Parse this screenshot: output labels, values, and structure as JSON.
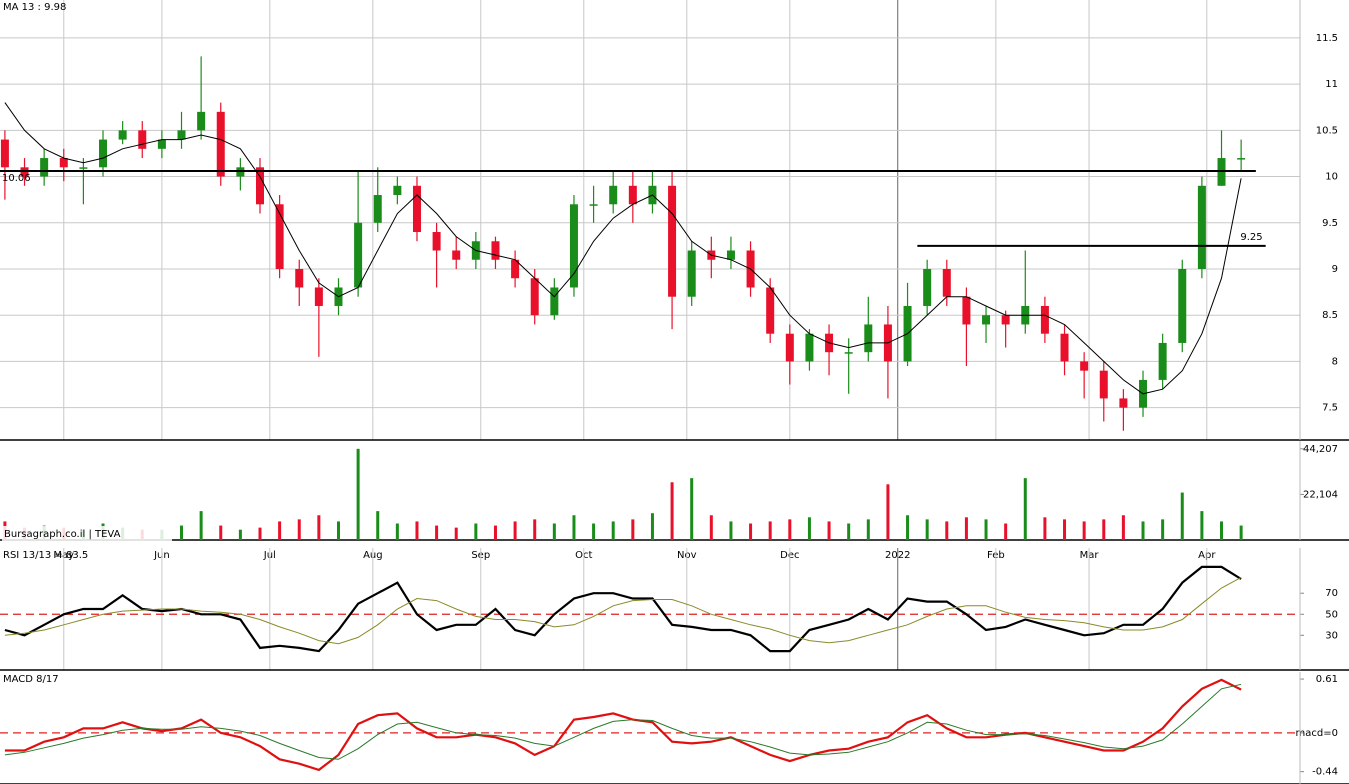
{
  "chart_data": [
    {
      "type": "candlestick",
      "title": "MA 13 : 9.98",
      "x": [
        1,
        5,
        9,
        13,
        17,
        21,
        25,
        29,
        33,
        37,
        41,
        45,
        49,
        53,
        57,
        61,
        65,
        69,
        73,
        77,
        81,
        85,
        89,
        93,
        97,
        101,
        105,
        109,
        113,
        117,
        121,
        125,
        129,
        133,
        137,
        141,
        145,
        149,
        153,
        157,
        161,
        165,
        169,
        173,
        177,
        181,
        185,
        189,
        193,
        197,
        201,
        205,
        209,
        213,
        217,
        221,
        225,
        229,
        233,
        237,
        241,
        245,
        249,
        253
      ],
      "open": [
        10.4,
        10.1,
        10.0,
        10.2,
        10.1,
        10.1,
        10.4,
        10.5,
        10.3,
        10.4,
        10.5,
        10.7,
        10.0,
        10.1,
        9.7,
        9.0,
        8.8,
        8.6,
        8.8,
        9.5,
        9.8,
        9.9,
        9.4,
        9.2,
        9.1,
        9.3,
        9.1,
        8.9,
        8.5,
        8.8,
        9.7,
        9.7,
        9.9,
        9.7,
        9.9,
        8.7,
        9.2,
        9.1,
        9.2,
        8.8,
        8.3,
        8.0,
        8.3,
        8.1,
        8.1,
        8.4,
        8.0,
        8.6,
        9.0,
        8.7,
        8.4,
        8.5,
        8.4,
        8.6,
        8.3,
        8.0,
        7.9,
        7.6,
        7.5,
        7.8,
        8.2,
        9.0,
        9.9,
        10.2
      ],
      "high": [
        10.5,
        10.2,
        10.3,
        10.3,
        10.2,
        10.5,
        10.6,
        10.6,
        10.5,
        10.7,
        11.3,
        10.8,
        10.2,
        10.2,
        9.8,
        9.1,
        8.9,
        8.9,
        10.05,
        10.1,
        10.0,
        10.0,
        9.5,
        9.35,
        9.4,
        9.35,
        9.2,
        9.0,
        8.9,
        9.8,
        9.9,
        10.05,
        10.05,
        10.05,
        10.05,
        9.3,
        9.35,
        9.35,
        9.3,
        8.9,
        8.4,
        8.35,
        8.4,
        8.25,
        8.7,
        8.6,
        8.85,
        9.1,
        9.1,
        8.8,
        8.6,
        8.55,
        9.2,
        8.7,
        8.4,
        8.1,
        8.0,
        7.7,
        7.9,
        8.3,
        9.1,
        10.0,
        10.5,
        10.4
      ],
      "low": [
        9.75,
        9.9,
        9.9,
        9.95,
        9.7,
        10.0,
        10.35,
        10.2,
        10.2,
        10.3,
        10.4,
        9.9,
        9.85,
        9.6,
        8.9,
        8.6,
        8.05,
        8.5,
        8.7,
        9.4,
        9.7,
        9.3,
        8.8,
        9.0,
        9.0,
        9.0,
        8.8,
        8.4,
        8.45,
        8.7,
        9.5,
        9.6,
        9.5,
        9.6,
        8.35,
        8.6,
        8.9,
        9.0,
        8.7,
        8.2,
        7.75,
        7.9,
        7.85,
        7.65,
        8.0,
        7.6,
        7.95,
        8.5,
        8.6,
        7.95,
        8.2,
        8.15,
        8.3,
        8.2,
        7.85,
        7.6,
        7.35,
        7.25,
        7.4,
        7.7,
        8.1,
        8.9,
        9.9,
        10.05
      ],
      "close": [
        10.1,
        10.0,
        10.2,
        10.1,
        10.1,
        10.4,
        10.5,
        10.3,
        10.4,
        10.5,
        10.7,
        10.0,
        10.1,
        9.7,
        9.0,
        8.8,
        8.6,
        8.8,
        9.5,
        9.8,
        9.9,
        9.4,
        9.2,
        9.1,
        9.3,
        9.1,
        8.9,
        8.5,
        8.8,
        9.7,
        9.7,
        9.9,
        9.7,
        9.9,
        8.7,
        9.2,
        9.1,
        9.2,
        8.8,
        8.3,
        8.0,
        8.3,
        8.1,
        8.1,
        8.4,
        8.0,
        8.6,
        9.0,
        8.7,
        8.4,
        8.5,
        8.4,
        8.6,
        8.3,
        8.0,
        7.9,
        7.6,
        7.5,
        7.8,
        8.2,
        9.0,
        9.9,
        10.2,
        10.2
      ],
      "up_color": "#1a8c1a",
      "down_color": "#e8102a",
      "series": [
        {
          "color": "#000000",
          "values": [
            10.8,
            10.5,
            10.3,
            10.2,
            10.15,
            10.2,
            10.3,
            10.35,
            10.4,
            10.4,
            10.45,
            10.4,
            10.3,
            10.0,
            9.6,
            9.2,
            8.85,
            8.7,
            8.8,
            9.2,
            9.6,
            9.8,
            9.6,
            9.35,
            9.2,
            9.15,
            9.1,
            8.9,
            8.7,
            8.95,
            9.3,
            9.55,
            9.7,
            9.8,
            9.6,
            9.3,
            9.15,
            9.1,
            9.0,
            8.8,
            8.5,
            8.3,
            8.2,
            8.15,
            8.2,
            8.2,
            8.3,
            8.5,
            8.7,
            8.7,
            8.6,
            8.5,
            8.5,
            8.5,
            8.4,
            8.2,
            8.0,
            7.8,
            7.65,
            7.7,
            7.9,
            8.3,
            8.9,
            9.98
          ]
        }
      ],
      "levels": [
        {
          "value": 10.06,
          "label": "10.06",
          "xlim": [
            0,
            256
          ]
        },
        {
          "value": 9.25,
          "label": "9.25",
          "xlim": [
            187,
            258
          ]
        }
      ],
      "xlim": [
        0,
        265
      ],
      "ylim": [
        7.15,
        11.91
      ],
      "xticks": [
        {
          "value": 13,
          "label": "May"
        },
        {
          "value": 33,
          "label": "Jun"
        },
        {
          "value": 55,
          "label": "Jul"
        },
        {
          "value": 76,
          "label": "Aug"
        },
        {
          "value": 98,
          "label": "Sep"
        },
        {
          "value": 119,
          "label": "Oct"
        },
        {
          "value": 140,
          "label": "Nov"
        },
        {
          "value": 161,
          "label": "Dec"
        },
        {
          "value": 183,
          "label": "2022"
        },
        {
          "value": 203,
          "label": "Feb"
        },
        {
          "value": 222,
          "label": "Mar"
        },
        {
          "value": 246,
          "label": "Apr"
        }
      ],
      "yticks": [
        7.5,
        8,
        8.5,
        9,
        9.5,
        10,
        10.5,
        11,
        11.5
      ],
      "grid": true
    },
    {
      "type": "bar",
      "title": "Bursagraph.co.il | TEVA",
      "x": [
        1,
        5,
        9,
        13,
        17,
        21,
        25,
        29,
        33,
        37,
        41,
        45,
        49,
        53,
        57,
        61,
        65,
        69,
        73,
        77,
        81,
        85,
        89,
        93,
        97,
        101,
        105,
        109,
        113,
        117,
        121,
        125,
        129,
        133,
        137,
        141,
        145,
        149,
        153,
        157,
        161,
        165,
        169,
        173,
        177,
        181,
        185,
        189,
        193,
        197,
        201,
        205,
        209,
        213,
        217,
        221,
        225,
        229,
        233,
        237,
        241,
        245,
        249,
        253
      ],
      "values": [
        9000,
        6000,
        7000,
        6000,
        5000,
        8000,
        6000,
        5000,
        5000,
        7000,
        14000,
        7000,
        5000,
        6000,
        9000,
        10000,
        12000,
        9000,
        44207,
        14000,
        8000,
        9000,
        7000,
        6000,
        8000,
        7000,
        9000,
        10000,
        8000,
        12000,
        8000,
        9000,
        10000,
        13000,
        28000,
        30000,
        12000,
        9000,
        8000,
        9000,
        10000,
        11000,
        9000,
        8000,
        10000,
        27000,
        12000,
        10000,
        9000,
        11000,
        10000,
        8000,
        30000,
        11000,
        10000,
        9000,
        10000,
        12000,
        9000,
        10000,
        23000,
        14000,
        9000,
        7000
      ],
      "xlim": [
        0,
        265
      ],
      "ylim": [
        0,
        48000
      ],
      "yticks": [
        {
          "value": 44207,
          "label": "44,207"
        },
        {
          "value": 22104,
          "label": "22,104"
        }
      ]
    },
    {
      "type": "line",
      "title": "RSI 13/13 = 83.5",
      "x": [
        1,
        5,
        9,
        13,
        17,
        21,
        25,
        29,
        33,
        37,
        41,
        45,
        49,
        53,
        57,
        61,
        65,
        69,
        73,
        77,
        81,
        85,
        89,
        93,
        97,
        101,
        105,
        109,
        113,
        117,
        121,
        125,
        129,
        133,
        137,
        141,
        145,
        149,
        153,
        157,
        161,
        165,
        169,
        173,
        177,
        181,
        185,
        189,
        193,
        197,
        201,
        205,
        209,
        213,
        217,
        221,
        225,
        229,
        233,
        237,
        241,
        245,
        249,
        253
      ],
      "series": [
        {
          "color": "#000000",
          "values": [
            35,
            30,
            40,
            50,
            55,
            55,
            68,
            55,
            53,
            55,
            50,
            50,
            45,
            18,
            20,
            18,
            15,
            35,
            60,
            70,
            80,
            50,
            35,
            40,
            40,
            55,
            35,
            30,
            50,
            65,
            70,
            70,
            65,
            65,
            40,
            38,
            35,
            35,
            30,
            15,
            15,
            35,
            40,
            45,
            55,
            45,
            65,
            62,
            62,
            50,
            35,
            38,
            45,
            40,
            35,
            30,
            32,
            40,
            40,
            55,
            80,
            95,
            95,
            83.5
          ]
        },
        {
          "color": "#8a8a2a",
          "values": [
            30,
            32,
            35,
            40,
            45,
            50,
            53,
            54,
            55,
            55,
            53,
            52,
            50,
            45,
            38,
            32,
            25,
            22,
            28,
            40,
            55,
            65,
            63,
            55,
            48,
            45,
            45,
            43,
            38,
            40,
            48,
            58,
            63,
            64,
            64,
            58,
            50,
            45,
            40,
            36,
            30,
            25,
            23,
            25,
            30,
            35,
            40,
            48,
            55,
            58,
            58,
            52,
            47,
            45,
            44,
            42,
            38,
            35,
            35,
            38,
            45,
            60,
            75,
            85
          ]
        }
      ],
      "xlim": [
        0,
        265
      ],
      "ylim": [
        -3,
        113
      ],
      "yticks": [
        30,
        50,
        70
      ],
      "hline": 50,
      "hline_color": "#e02020"
    },
    {
      "type": "line",
      "title": "MACD 8/17",
      "x": [
        1,
        5,
        9,
        13,
        17,
        21,
        25,
        29,
        33,
        37,
        41,
        45,
        49,
        53,
        57,
        61,
        65,
        69,
        73,
        77,
        81,
        85,
        89,
        93,
        97,
        101,
        105,
        109,
        113,
        117,
        121,
        125,
        129,
        133,
        137,
        141,
        145,
        149,
        153,
        157,
        161,
        165,
        169,
        173,
        177,
        181,
        185,
        189,
        193,
        197,
        201,
        205,
        209,
        213,
        217,
        221,
        225,
        229,
        233,
        237,
        241,
        245,
        249,
        253
      ],
      "series": [
        {
          "color": "#e01010",
          "values": [
            -0.2,
            -0.2,
            -0.1,
            -0.05,
            0.05,
            0.05,
            0.12,
            0.05,
            0.02,
            0.05,
            0.15,
            0,
            -0.05,
            -0.15,
            -0.3,
            -0.35,
            -0.42,
            -0.25,
            0.1,
            0.2,
            0.22,
            0.05,
            -0.05,
            -0.05,
            -0.02,
            -0.05,
            -0.12,
            -0.25,
            -0.15,
            0.15,
            0.18,
            0.22,
            0.15,
            0.12,
            -0.1,
            -0.12,
            -0.1,
            -0.05,
            -0.15,
            -0.25,
            -0.32,
            -0.25,
            -0.2,
            -0.18,
            -0.1,
            -0.05,
            0.12,
            0.2,
            0.05,
            -0.05,
            -0.05,
            -0.02,
            0,
            -0.05,
            -0.1,
            -0.15,
            -0.2,
            -0.2,
            -0.1,
            0.05,
            0.3,
            0.5,
            0.6,
            0.49
          ]
        },
        {
          "color": "#2a7a2a",
          "values": [
            -0.25,
            -0.22,
            -0.17,
            -0.12,
            -0.06,
            -0.02,
            0.03,
            0.05,
            0.04,
            0.04,
            0.07,
            0.05,
            0.02,
            -0.03,
            -0.12,
            -0.2,
            -0.28,
            -0.3,
            -0.18,
            -0.02,
            0.1,
            0.12,
            0.06,
            0,
            -0.02,
            -0.03,
            -0.06,
            -0.12,
            -0.15,
            -0.05,
            0.05,
            0.13,
            0.15,
            0.14,
            0.05,
            -0.03,
            -0.06,
            -0.06,
            -0.1,
            -0.16,
            -0.23,
            -0.25,
            -0.24,
            -0.22,
            -0.16,
            -0.1,
            0,
            0.12,
            0.1,
            0.03,
            -0.02,
            -0.02,
            -0.01,
            -0.03,
            -0.07,
            -0.11,
            -0.16,
            -0.18,
            -0.15,
            -0.08,
            0.1,
            0.3,
            0.5,
            0.55
          ]
        }
      ],
      "xlim": [
        0,
        265
      ],
      "ylim": [
        -0.58,
        0.69
      ],
      "yticks": [
        {
          "value": 0.61,
          "label": "0.61"
        },
        {
          "value": 0,
          "label": "macd=0"
        },
        {
          "value": -0.44,
          "label": "-0.44"
        }
      ],
      "hline": 0,
      "hline_color": "#e02020"
    }
  ]
}
